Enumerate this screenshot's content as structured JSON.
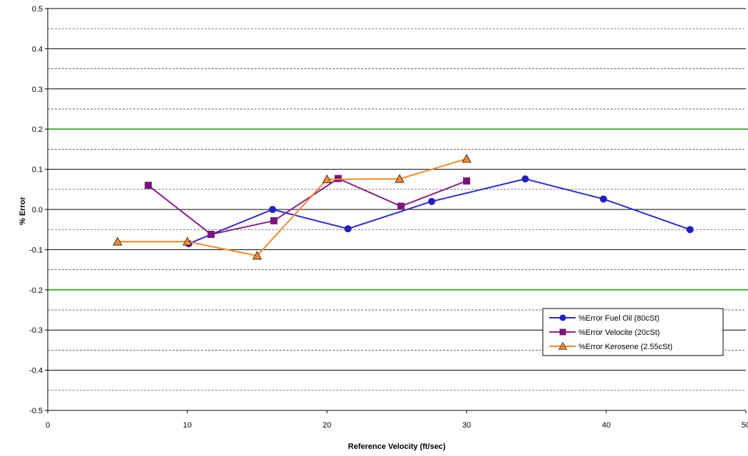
{
  "chart_data": {
    "type": "line",
    "title": "",
    "xlabel": "Reference Velocity (ft/sec)",
    "ylabel": "% Error",
    "xlim": [
      0,
      50
    ],
    "ylim": [
      -0.5,
      0.5
    ],
    "x_ticks": [
      "0",
      "10",
      "20",
      "30",
      "40",
      "50"
    ],
    "y_ticks": [
      "-0.5",
      "-0.4",
      "-0.3",
      "-0.2",
      "-0.1",
      "0.0",
      "0.1",
      "0.2",
      "0.3",
      "0.4",
      "0.5"
    ],
    "grid": {
      "major_solid_color": "#000000",
      "minor_dashed_color": "#000000",
      "minor_values": [
        -0.45,
        -0.35,
        -0.25,
        -0.15,
        -0.05,
        0.05,
        0.15,
        0.25,
        0.35,
        0.45
      ],
      "major_values": [
        -0.4,
        -0.3,
        -0.1,
        0.0,
        0.1,
        0.3,
        0.4
      ],
      "limit_lines": {
        "values": [
          -0.2,
          0.2
        ],
        "color": "#3db33d"
      }
    },
    "legend": {
      "placement": "bottom-right"
    },
    "series": [
      {
        "name": "%Error Fuel Oil (80cSt)",
        "marker": "circle",
        "color": "#2b2bdb",
        "marker_color": "#1f1fc8",
        "x": [
          10.1,
          16.1,
          21.5,
          27.5,
          34.2,
          39.8,
          46.0
        ],
        "y": [
          -0.085,
          0.0,
          -0.048,
          0.02,
          0.076,
          0.026,
          -0.05
        ]
      },
      {
        "name": "%Error Velocite (20cSt)",
        "marker": "square",
        "color": "#8b1f8b",
        "marker_color": "#7a1478",
        "x": [
          7.2,
          11.7,
          16.2,
          20.8,
          25.3,
          30.0
        ],
        "y": [
          0.06,
          -0.062,
          -0.028,
          0.077,
          0.008,
          0.071
        ]
      },
      {
        "name": "%Error Kerosene (2.55cSt)",
        "marker": "triangle",
        "color": "#f5892a",
        "marker_color": "#f5892a",
        "x": [
          5.0,
          10.0,
          15.0,
          20.0,
          25.2,
          30.0
        ],
        "y": [
          -0.08,
          -0.08,
          -0.115,
          0.075,
          0.076,
          0.126
        ]
      }
    ]
  }
}
